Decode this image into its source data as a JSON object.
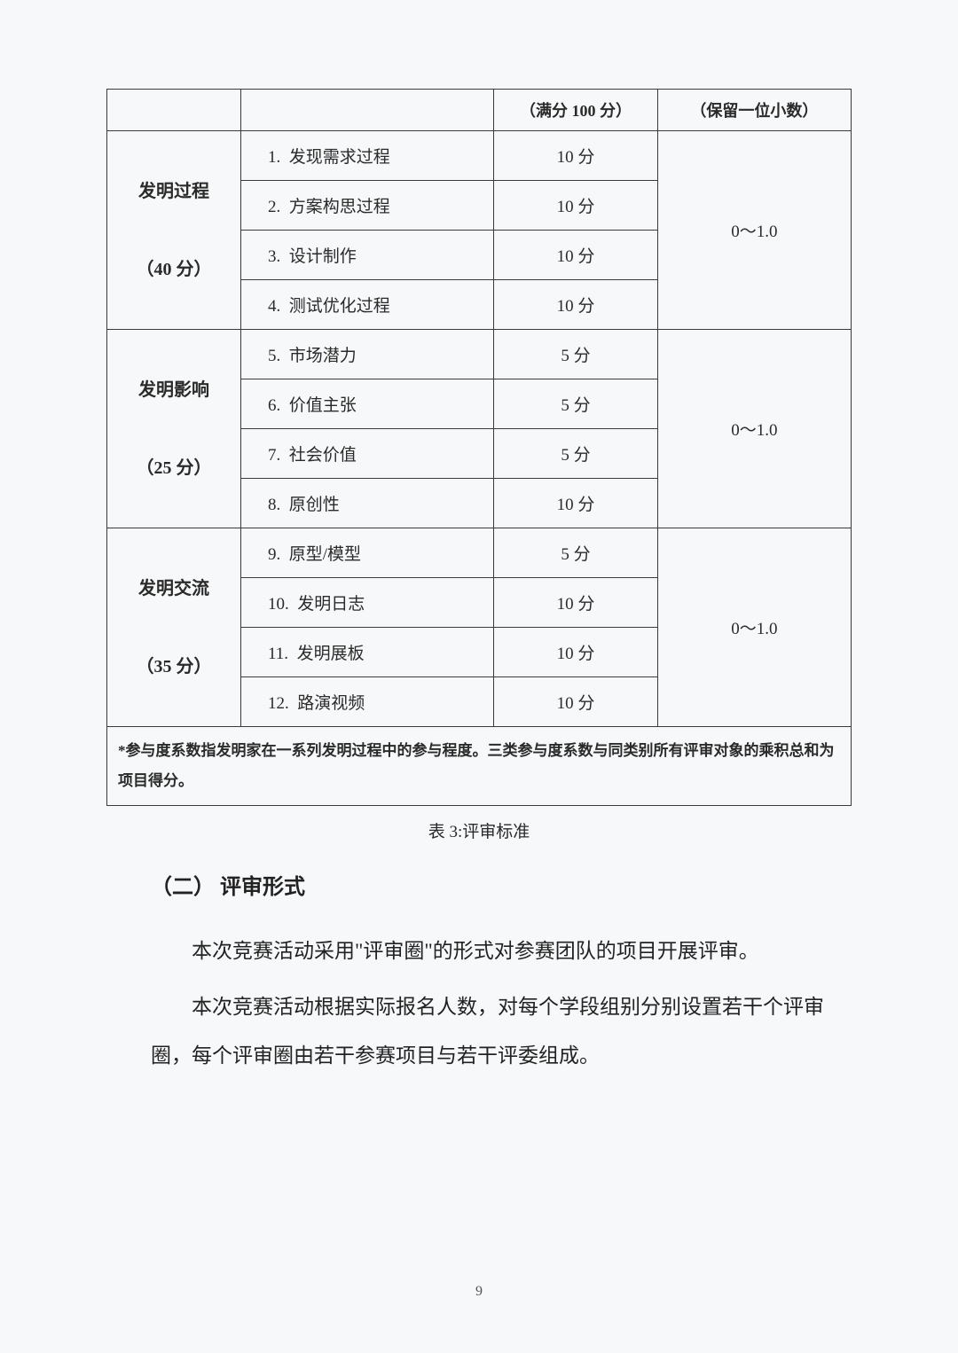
{
  "table": {
    "border_color": "#3a3a3a",
    "text_color": "#2a2a2a",
    "header": {
      "col3": "（满分 100 分）",
      "col4": "（保留一位小数）"
    },
    "sections": [
      {
        "category_line1": "发明过程",
        "category_line2": "（40 分）",
        "coefficient": "0～1.0",
        "items": [
          {
            "num": "1.",
            "label": "发现需求过程",
            "score": "10 分"
          },
          {
            "num": "2.",
            "label": "方案构思过程",
            "score": "10 分"
          },
          {
            "num": "3.",
            "label": "设计制作",
            "score": "10 分"
          },
          {
            "num": "4.",
            "label": "测试优化过程",
            "score": "10 分"
          }
        ]
      },
      {
        "category_line1": "发明影响",
        "category_line2": "（25 分）",
        "coefficient": "0～1.0",
        "items": [
          {
            "num": "5.",
            "label": "市场潜力",
            "score": "5 分"
          },
          {
            "num": "6.",
            "label": "价值主张",
            "score": "5 分"
          },
          {
            "num": "7.",
            "label": "社会价值",
            "score": "5 分"
          },
          {
            "num": "8.",
            "label": "原创性",
            "score": "10 分"
          }
        ]
      },
      {
        "category_line1": "发明交流",
        "category_line2": "（35 分）",
        "coefficient": "0～1.0",
        "items": [
          {
            "num": "9.",
            "label": "原型/模型",
            "score": "5 分"
          },
          {
            "num": "10.",
            "label": "发明日志",
            "score": "10 分"
          },
          {
            "num": "11.",
            "label": "发明展板",
            "score": "10 分"
          },
          {
            "num": "12.",
            "label": "路演视频",
            "score": "10 分"
          }
        ]
      }
    ],
    "footnote": "*参与度系数指发明家在一系列发明过程中的参与程度。三类参与度系数与同类别所有评审对象的乘积总和为项目得分。"
  },
  "caption": "表 3:评审标准",
  "section_heading": "（二）  评审形式",
  "paragraph1": "本次竞赛活动采用\"评审圈\"的形式对参赛团队的项目开展评审。",
  "paragraph2": "本次竞赛活动根据实际报名人数，对每个学段组别分别设置若干个评审圈，每个评审圈由若干参赛项目与若干评委组成。",
  "page_number": "9"
}
